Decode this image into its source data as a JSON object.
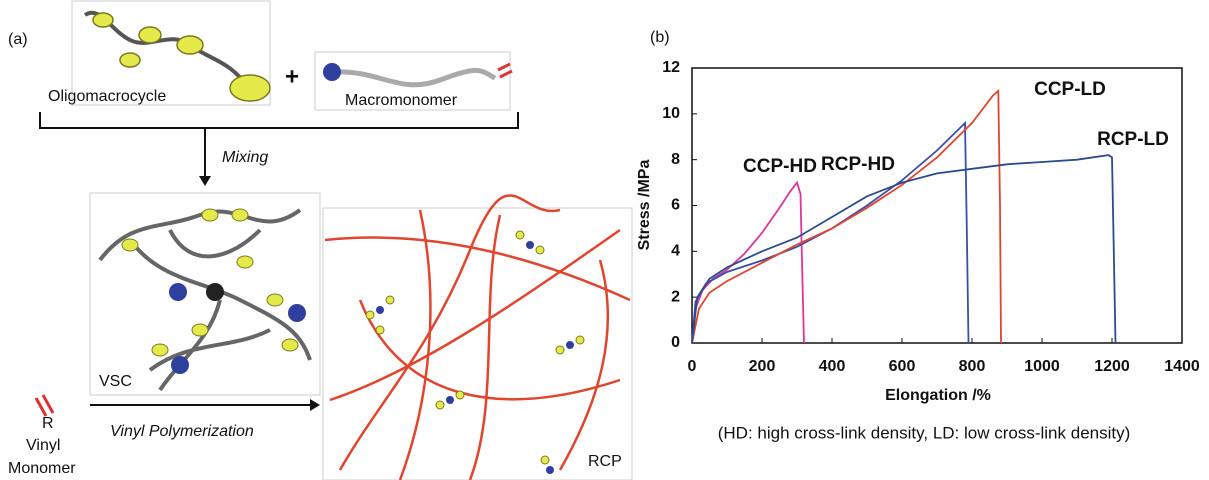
{
  "panel_a": {
    "label": "(a)",
    "oligomacrocycle": "Oligomacrocycle",
    "plus": "+",
    "macromonomer": "Macromonomer",
    "mixing": "Mixing",
    "vsc": "VSC",
    "r_group": "R",
    "vinyl_monomer": [
      "Vinyl",
      "Monomer"
    ],
    "polymerization": "Vinyl Polymerization",
    "rcp": "RCP"
  },
  "chart_data": {
    "type": "line",
    "panel_label": "(b)",
    "x_label": "Elongation /%",
    "y_label": "Stress /MPa",
    "caption": "(HD: high cross-link density, LD: low cross-link density)",
    "xlim": [
      0,
      1400
    ],
    "xticks": [
      0,
      200,
      400,
      600,
      800,
      1000,
      1200,
      1400
    ],
    "ylim": [
      0,
      12
    ],
    "yticks": [
      0,
      2,
      4,
      6,
      8,
      10,
      12
    ],
    "grid": false,
    "series": [
      {
        "name": "CCP-HD",
        "color": "#e0349a",
        "x": [
          0,
          10,
          30,
          60,
          100,
          150,
          200,
          250,
          280,
          300,
          310,
          315,
          320
        ],
        "values": [
          0,
          1.5,
          2.3,
          2.8,
          3.2,
          3.9,
          4.8,
          5.9,
          6.6,
          7.0,
          6.5,
          3,
          0
        ]
      },
      {
        "name": "RCP-HD",
        "color": "#3a4fa8",
        "x": [
          0,
          10,
          40,
          100,
          200,
          300,
          400,
          500,
          600,
          700,
          760,
          780,
          785,
          790
        ],
        "values": [
          0,
          1.8,
          2.6,
          3.1,
          3.6,
          4.2,
          5.0,
          6.0,
          7.1,
          8.4,
          9.3,
          9.6,
          5,
          0
        ]
      },
      {
        "name": "CCP-LD",
        "color": "#e2452e",
        "x": [
          0,
          20,
          50,
          100,
          200,
          300,
          400,
          500,
          600,
          700,
          800,
          860,
          875,
          880,
          883
        ],
        "values": [
          0,
          1.5,
          2.2,
          2.7,
          3.5,
          4.3,
          5.0,
          5.9,
          6.9,
          8.1,
          9.6,
          10.8,
          11.0,
          6,
          0
        ]
      },
      {
        "name": "RCP-LD",
        "color": "#2b4c8c",
        "x": [
          0,
          15,
          50,
          100,
          200,
          300,
          400,
          500,
          600,
          700,
          800,
          900,
          1000,
          1100,
          1190,
          1200,
          1205,
          1210
        ],
        "values": [
          0,
          2.0,
          2.8,
          3.3,
          4.0,
          4.6,
          5.5,
          6.4,
          7.0,
          7.4,
          7.6,
          7.8,
          7.9,
          8.0,
          8.2,
          8.1,
          4,
          0
        ]
      }
    ]
  }
}
